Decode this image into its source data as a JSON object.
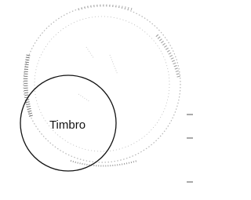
{
  "stamp": {
    "label": "Timbro"
  }
}
